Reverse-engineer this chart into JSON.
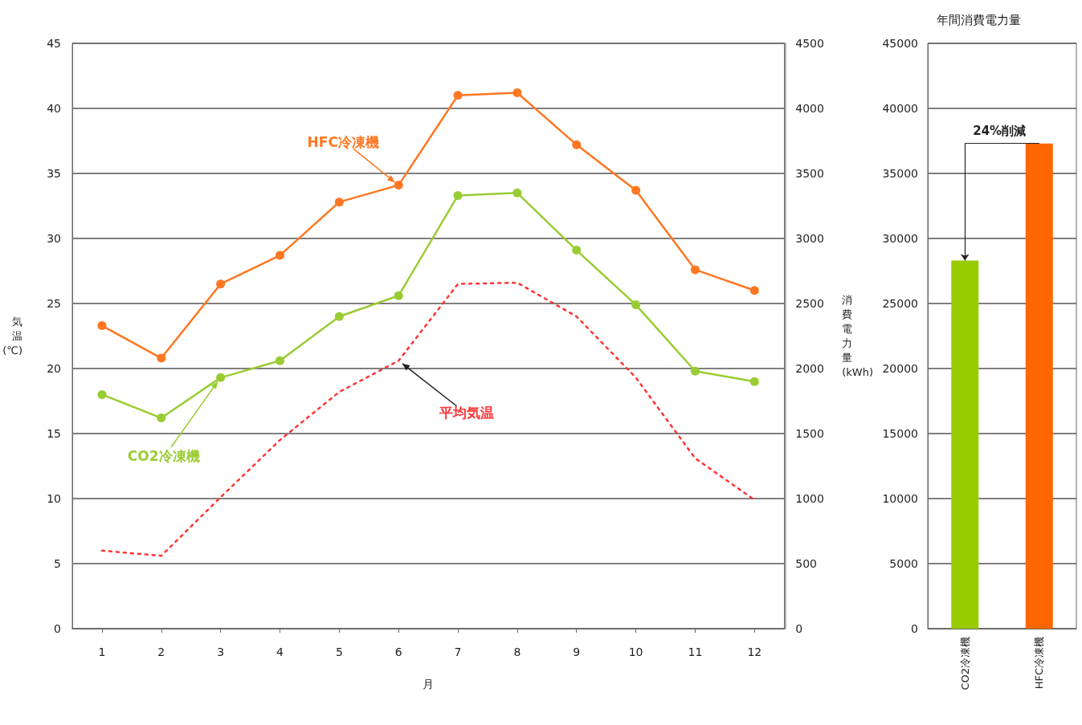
{
  "chart_data": [
    {
      "type": "line",
      "xlabel": "月",
      "ylabel": "気温(℃)",
      "y2label": "消費電力量(kWh)",
      "x": [
        1,
        2,
        3,
        4,
        5,
        6,
        7,
        8,
        9,
        10,
        11,
        12
      ],
      "xlim": [
        0.5,
        12.5
      ],
      "xticks": [
        1,
        2,
        3,
        4,
        5,
        6,
        7,
        8,
        9,
        10,
        11,
        12
      ],
      "ylim": [
        0,
        45
      ],
      "yticks": [
        0,
        5,
        10,
        15,
        20,
        25,
        30,
        35,
        40,
        45
      ],
      "y2lim": [
        0,
        4500
      ],
      "y2ticks": [
        0,
        500,
        1000,
        1500,
        2000,
        2500,
        3000,
        3500,
        4000,
        4500
      ],
      "series": [
        {
          "name": "HFC冷凍機",
          "color": "#ff7722",
          "axis": "y2",
          "marker": "circle",
          "line_style": "solid",
          "values": [
            2330,
            2080,
            2650,
            2870,
            3280,
            3410,
            4100,
            4120,
            3720,
            3370,
            2760,
            2600
          ]
        },
        {
          "name": "CO2冷凍機",
          "color": "#99cc33",
          "axis": "y2",
          "marker": "circle",
          "line_style": "solid",
          "values": [
            1800,
            1620,
            1930,
            2060,
            2400,
            2560,
            3330,
            3350,
            2910,
            2490,
            1980,
            1900
          ]
        },
        {
          "name": "平均気温",
          "color": "#ff3333",
          "axis": "y",
          "marker": "none",
          "line_style": "dotted",
          "values": [
            6.0,
            5.6,
            10.1,
            14.5,
            18.2,
            20.6,
            26.5,
            26.6,
            24.0,
            19.3,
            13.1,
            9.9
          ]
        }
      ],
      "grid": "y",
      "legend": false
    },
    {
      "type": "bar",
      "title": "年間消費電力量",
      "categories": [
        "CO2冷凍機",
        "HFC冷凍機"
      ],
      "values": [
        28300,
        37300
      ],
      "colors": [
        "#99cc00",
        "#ff6600"
      ],
      "ylim": [
        0,
        45000
      ],
      "yticks": [
        0,
        5000,
        10000,
        15000,
        20000,
        25000,
        30000,
        35000,
        40000,
        45000
      ],
      "grid": "y",
      "legend": false,
      "annotations": [
        "24%削減"
      ]
    }
  ]
}
